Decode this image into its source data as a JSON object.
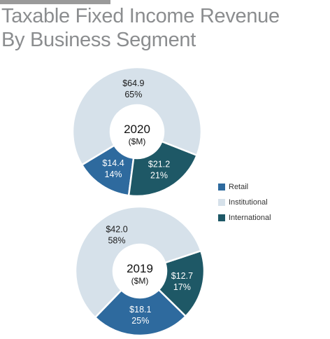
{
  "header": {
    "title_line1": "Taxable Fixed Income Revenue",
    "title_line2": "By Business Segment"
  },
  "colors": {
    "retail": "#2e6a9e",
    "institutional": "#d6e1ea",
    "international": "#1e5866",
    "separator": "#ffffff",
    "title": "#8b8d8f",
    "topbar": "#9a9a9a"
  },
  "legend": {
    "placement": "right",
    "items": [
      {
        "label": "Retail",
        "color": "#2e6a9e"
      },
      {
        "label": "Institutional",
        "color": "#d6e1ea"
      },
      {
        "label": "International",
        "color": "#1e5866"
      }
    ]
  },
  "chart_data": [
    {
      "type": "pie",
      "center_label": "2020",
      "center_unit": "($M)",
      "unit": "$M",
      "slices": [
        {
          "name": "Retail",
          "value": 14.4,
          "value_label": "$14.4",
          "percent_label": "14%"
        },
        {
          "name": "Institutional",
          "value": 64.9,
          "value_label": "$64.9",
          "percent_label": "65%"
        },
        {
          "name": "International",
          "value": 21.2,
          "value_label": "$21.2",
          "percent_label": "21%"
        }
      ]
    },
    {
      "type": "pie",
      "center_label": "2019",
      "center_unit": "($M)",
      "unit": "$M",
      "slices": [
        {
          "name": "Retail",
          "value": 18.1,
          "value_label": "$18.1",
          "percent_label": "25%"
        },
        {
          "name": "Institutional",
          "value": 42.0,
          "value_label": "$42.0",
          "percent_label": "58%"
        },
        {
          "name": "International",
          "value": 12.7,
          "value_label": "$12.7",
          "percent_label": "17%"
        }
      ]
    }
  ]
}
